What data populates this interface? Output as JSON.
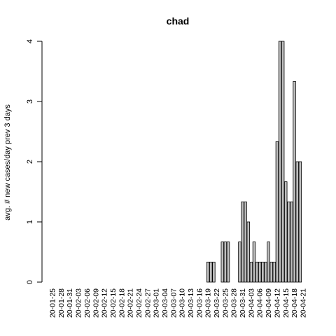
{
  "chart_data": {
    "type": "bar",
    "title": "chad",
    "xlabel": "",
    "ylabel": "avg. # new cases/day prev  3  days",
    "ylim": [
      0,
      4
    ],
    "y_ticks": [
      0,
      1,
      2,
      3,
      4
    ],
    "grid": false,
    "legend": "none",
    "bar_fill": "#bebebe",
    "bar_stroke": "#000000",
    "categories": [
      "20-01-25",
      "20-01-26",
      "20-01-27",
      "20-01-28",
      "20-01-29",
      "20-01-30",
      "20-01-31",
      "20-02-01",
      "20-02-02",
      "20-02-03",
      "20-02-04",
      "20-02-05",
      "20-02-06",
      "20-02-07",
      "20-02-08",
      "20-02-09",
      "20-02-10",
      "20-02-11",
      "20-02-12",
      "20-02-13",
      "20-02-14",
      "20-02-15",
      "20-02-16",
      "20-02-17",
      "20-02-18",
      "20-02-19",
      "20-02-20",
      "20-02-21",
      "20-02-22",
      "20-02-23",
      "20-02-24",
      "20-02-25",
      "20-02-26",
      "20-02-27",
      "20-02-28",
      "20-02-29",
      "20-03-01",
      "20-03-02",
      "20-03-03",
      "20-03-04",
      "20-03-05",
      "20-03-06",
      "20-03-07",
      "20-03-08",
      "20-03-09",
      "20-03-10",
      "20-03-11",
      "20-03-12",
      "20-03-13",
      "20-03-14",
      "20-03-15",
      "20-03-16",
      "20-03-17",
      "20-03-18",
      "20-03-19",
      "20-03-20",
      "20-03-21",
      "20-03-22",
      "20-03-23",
      "20-03-24",
      "20-03-25",
      "20-03-26",
      "20-03-27",
      "20-03-28",
      "20-03-29",
      "20-03-30",
      "20-03-31",
      "20-04-01",
      "20-04-02",
      "20-04-03",
      "20-04-04",
      "20-04-05",
      "20-04-06",
      "20-04-07",
      "20-04-08",
      "20-04-09",
      "20-04-10",
      "20-04-11",
      "20-04-12",
      "20-04-13",
      "20-04-14",
      "20-04-15",
      "20-04-16",
      "20-04-17",
      "20-04-18",
      "20-04-19",
      "20-04-20",
      "20-04-21"
    ],
    "values": [
      0,
      0,
      0,
      0,
      0,
      0,
      0,
      0,
      0,
      0,
      0,
      0,
      0,
      0,
      0,
      0,
      0,
      0,
      0,
      0,
      0,
      0,
      0,
      0,
      0,
      0,
      0,
      0,
      0,
      0,
      0,
      0,
      0,
      0,
      0,
      0,
      0,
      0,
      0,
      0,
      0,
      0,
      0,
      0,
      0,
      0,
      0,
      0,
      0,
      0,
      0,
      0,
      0,
      0,
      0.333,
      0.333,
      0.333,
      0,
      0,
      0.667,
      0.667,
      0.667,
      0,
      0,
      0,
      0.667,
      1.333,
      1.333,
      1,
      0.333,
      0.667,
      0.333,
      0.333,
      0.333,
      0.333,
      0.667,
      0.333,
      0.333,
      2.333,
      4,
      4,
      1.667,
      1.333,
      1.333,
      3.333,
      2,
      2,
      0
    ],
    "tick_labels_shown": [
      "20-01-25",
      "20-01-28",
      "20-01-31",
      "20-02-03",
      "20-02-06",
      "20-02-09",
      "20-02-12",
      "20-02-15",
      "20-02-18",
      "20-02-21",
      "20-02-24",
      "20-02-27",
      "20-03-01",
      "20-03-04",
      "20-03-07",
      "20-03-10",
      "20-03-13",
      "20-03-16",
      "20-03-19",
      "20-03-22",
      "20-03-25",
      "20-03-28",
      "20-03-31",
      "20-04-03",
      "20-04-06",
      "20-04-09",
      "20-04-12",
      "20-04-15",
      "20-04-18",
      "20-04-21"
    ]
  }
}
